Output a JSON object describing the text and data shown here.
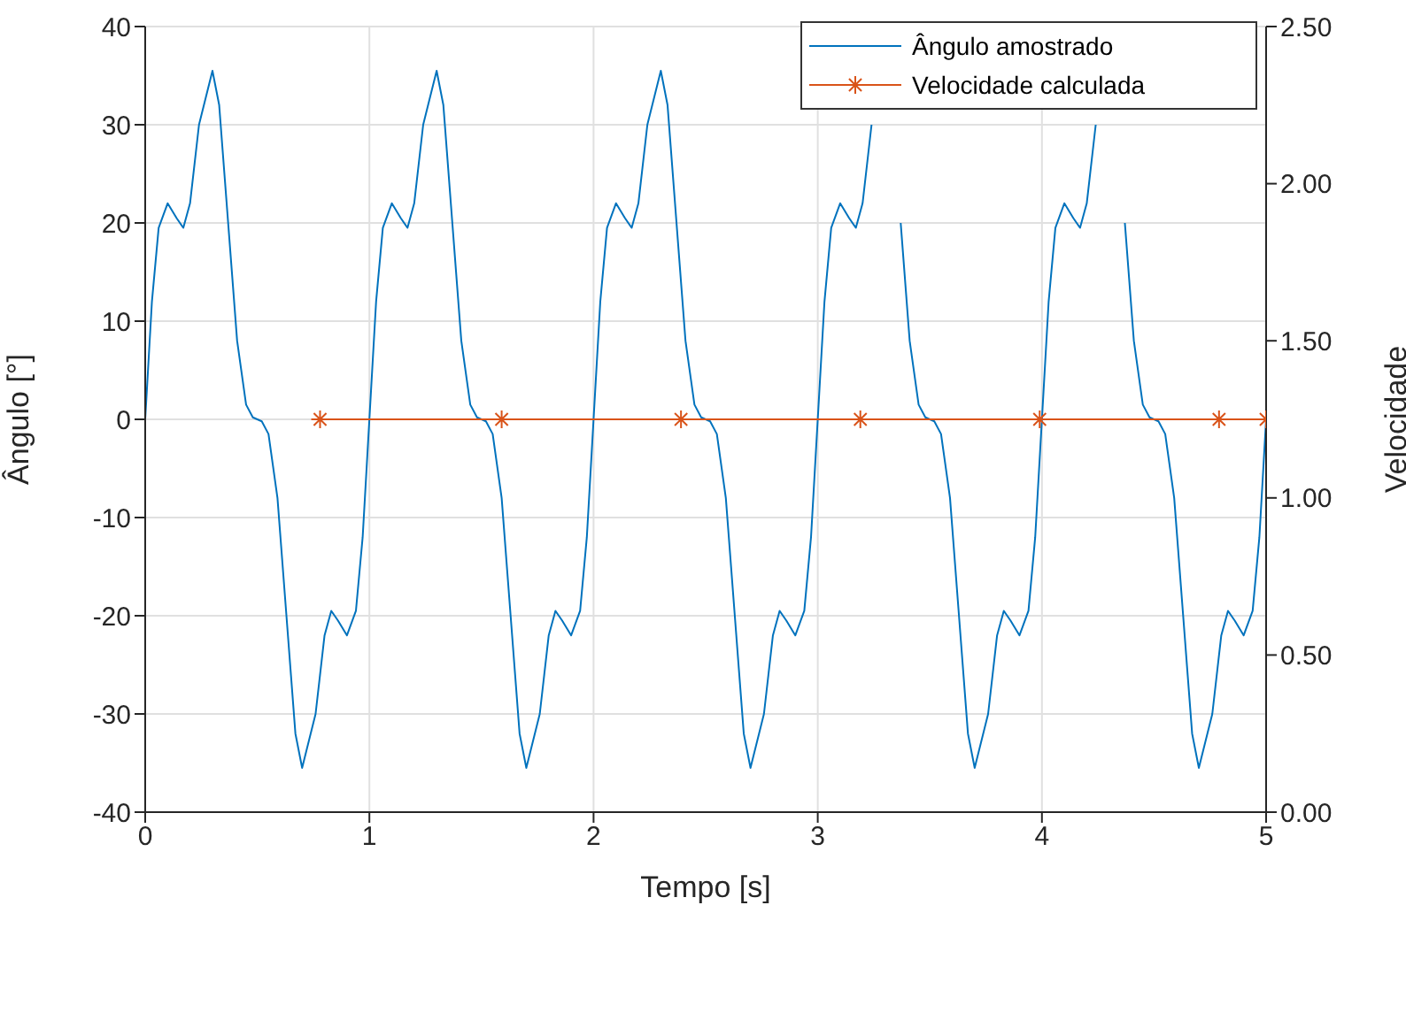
{
  "chart_data": {
    "type": "line",
    "xlabel": "Tempo [s]",
    "ylabel": "Ângulo [°]",
    "y2label": "Velocidade",
    "xlim": [
      0,
      5
    ],
    "xticks": [
      0,
      1,
      2,
      3,
      4,
      5
    ],
    "ylim": [
      -40,
      40
    ],
    "yticks": [
      -40,
      -30,
      -20,
      -10,
      0,
      10,
      20,
      30,
      40
    ],
    "y2lim": [
      0,
      2.5
    ],
    "y2ticks": [
      {
        "value": 0,
        "label": "0.00"
      },
      {
        "value": 0.5,
        "label": "0.50"
      },
      {
        "value": 1,
        "label": "1.00"
      },
      {
        "value": 1.5,
        "label": "1.50"
      },
      {
        "value": 2,
        "label": "2.00"
      },
      {
        "value": 2.5,
        "label": "2.50"
      }
    ],
    "grid": true,
    "legend": "top right",
    "series": [
      {
        "name": "Ângulo amostrado",
        "color": "#0072bd",
        "x": [
          0,
          0.03,
          0.06,
          0.1,
          0.14,
          0.17,
          0.2,
          0.24,
          0.3,
          0.33,
          0.37,
          0.41,
          0.45,
          0.48,
          0.5,
          0.52,
          0.55,
          0.59,
          0.63,
          0.67,
          0.7,
          0.76,
          0.8,
          0.83,
          0.86,
          0.9,
          0.94,
          0.97,
          1,
          1.03,
          1.06,
          1.1,
          1.14,
          1.17,
          1.2,
          1.24,
          1.3,
          1.33,
          1.37,
          1.41,
          1.45,
          1.48,
          1.5,
          1.52,
          1.55,
          1.59,
          1.63,
          1.67,
          1.7,
          1.76,
          1.8,
          1.83,
          1.86,
          1.9,
          1.94,
          1.97,
          2,
          2.03,
          2.06,
          2.1,
          2.14,
          2.17,
          2.2,
          2.24,
          2.3,
          2.33,
          2.37,
          2.41,
          2.45,
          2.48,
          2.5,
          2.52,
          2.55,
          2.59,
          2.63,
          2.67,
          2.7,
          2.76,
          2.8,
          2.83,
          2.86,
          2.9,
          2.94,
          2.97,
          3,
          3.03,
          3.06,
          3.1,
          3.14,
          3.17,
          3.2,
          3.24,
          3.3,
          3.33,
          3.37,
          3.41,
          3.45,
          3.48,
          3.5,
          3.52,
          3.55,
          3.59,
          3.63,
          3.67,
          3.7,
          3.76,
          3.8,
          3.83,
          3.86,
          3.9,
          3.94,
          3.97,
          4,
          4.03,
          4.06,
          4.1,
          4.14,
          4.17,
          4.2,
          4.24,
          4.3,
          4.33,
          4.37,
          4.41,
          4.45,
          4.48,
          4.5,
          4.52,
          4.55,
          4.59,
          4.63,
          4.67,
          4.7,
          4.76,
          4.8,
          4.83,
          4.86,
          4.9,
          4.94,
          4.97,
          5
        ],
        "values": [
          0,
          12,
          19.5,
          22,
          20.5,
          19.5,
          22,
          30,
          35.5,
          32,
          20,
          8,
          1.5,
          0.2,
          0,
          -0.2,
          -1.5,
          -8,
          -20,
          -32,
          -35.5,
          -30,
          -22,
          -19.5,
          -20.5,
          -22,
          -19.5,
          -12,
          0,
          12,
          19.5,
          22,
          20.5,
          19.5,
          22,
          30,
          35.5,
          32,
          20,
          8,
          1.5,
          0.2,
          0,
          -0.2,
          -1.5,
          -8,
          -20,
          -32,
          -35.5,
          -30,
          -22,
          -19.5,
          -20.5,
          -22,
          -19.5,
          -12,
          0,
          12,
          19.5,
          22,
          20.5,
          19.5,
          22,
          30,
          35.5,
          32,
          20,
          8,
          1.5,
          0.2,
          0,
          -0.2,
          -1.5,
          -8,
          -20,
          -32,
          -35.5,
          -30,
          -22,
          -19.5,
          -20.5,
          -22,
          -19.5,
          -12,
          0,
          12,
          19.5,
          22,
          20.5,
          19.5,
          22,
          30,
          null,
          null,
          20,
          8,
          1.5,
          0.2,
          0,
          -0.2,
          -1.5,
          -8,
          -20,
          -32,
          -35.5,
          -30,
          -22,
          -19.5,
          -20.5,
          -22,
          -19.5,
          -12,
          0,
          12,
          19.5,
          22,
          20.5,
          19.5,
          22,
          30,
          null,
          null,
          20,
          8,
          1.5,
          0.2,
          0,
          -0.2,
          -1.5,
          -8,
          -20,
          -32,
          -35.5,
          -30,
          -22,
          -19.5,
          -20.5,
          -22,
          -19.5,
          -12,
          0
        ]
      },
      {
        "name": "Velocidade calculada",
        "color": "#d95319",
        "marker": "cross",
        "axis": "y2",
        "x": [
          0.78,
          1.59,
          2.39,
          3.19,
          3.99,
          4.79,
          5
        ],
        "values": [
          1.25,
          1.25,
          1.25,
          1.25,
          1.25,
          1.25,
          1.25
        ]
      }
    ]
  }
}
